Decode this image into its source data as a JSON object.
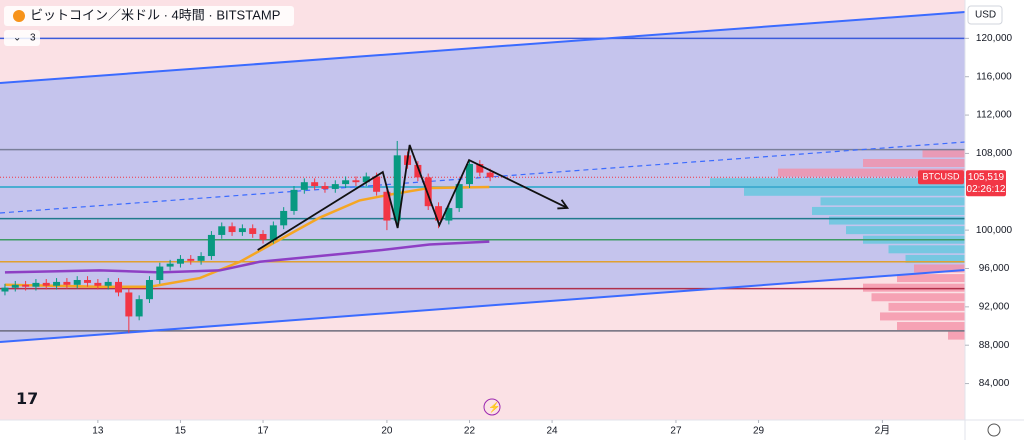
{
  "chart_data": {
    "type": "candlestick",
    "title": "ビットコイン／米ドル · 4時間 · BITSTAMP",
    "indicator_count": "3",
    "currency": "USD",
    "x": [
      10.75,
      11,
      11.25,
      11.5,
      11.75,
      12,
      12.25,
      12.5,
      12.75,
      13,
      13.25,
      13.5,
      13.75,
      14,
      14.25,
      14.5,
      14.75,
      15,
      15.25,
      15.5,
      15.75,
      16,
      16.25,
      16.5,
      16.75,
      17,
      17.25,
      17.5,
      17.75,
      18,
      18.25,
      18.5,
      18.75,
      19,
      19.25,
      19.5,
      19.75,
      20,
      20.25,
      20.5,
      20.75,
      21,
      21.25,
      21.5,
      21.75,
      22,
      22.25,
      22.5
    ],
    "open": [
      93600,
      94000,
      94300,
      94100,
      94500,
      94200,
      94600,
      94300,
      94800,
      94500,
      94200,
      94600,
      93500,
      91000,
      92800,
      94800,
      96200,
      96500,
      97000,
      96800,
      97300,
      99500,
      100400,
      99800,
      100200,
      99600,
      99000,
      100500,
      102000,
      104200,
      105000,
      104600,
      104300,
      104800,
      105200,
      105000,
      105600,
      104000,
      101000,
      107800,
      106800,
      105500,
      102500,
      101000,
      102300,
      104800,
      106900,
      106000
    ],
    "high": [
      94400,
      94700,
      94700,
      94900,
      94900,
      95000,
      95000,
      95200,
      95200,
      94900,
      95000,
      95000,
      93900,
      93200,
      95200,
      96600,
      96900,
      97400,
      97400,
      97700,
      99900,
      100800,
      100800,
      100600,
      100600,
      100000,
      100900,
      102400,
      104600,
      105400,
      105400,
      105000,
      105200,
      105600,
      105600,
      106000,
      106000,
      104400,
      109300,
      108200,
      107200,
      105900,
      102900,
      102700,
      105200,
      107300,
      107300,
      106400
    ],
    "low": [
      93200,
      93600,
      93700,
      93700,
      93800,
      93800,
      93900,
      93900,
      94100,
      93800,
      93800,
      93100,
      89300,
      90600,
      92400,
      94400,
      95800,
      96100,
      96400,
      96400,
      96900,
      99100,
      99400,
      99400,
      99200,
      98600,
      98600,
      100100,
      101600,
      103800,
      104200,
      103900,
      103900,
      104400,
      104600,
      104600,
      103600,
      100000,
      100600,
      106400,
      105100,
      102100,
      100200,
      100600,
      101900,
      104400,
      105600,
      105100
    ],
    "close": [
      94000,
      94300,
      94100,
      94500,
      94200,
      94600,
      94300,
      94800,
      94500,
      94200,
      94600,
      93500,
      91000,
      92800,
      94800,
      96200,
      96500,
      97000,
      96800,
      97300,
      99500,
      100400,
      99800,
      100200,
      99600,
      99000,
      100500,
      102000,
      104200,
      105000,
      104600,
      104300,
      104800,
      105200,
      105000,
      105600,
      104000,
      101000,
      107800,
      106800,
      105500,
      102500,
      101000,
      102300,
      104800,
      106900,
      106000,
      105519
    ],
    "up_color": "#089981",
    "down_color": "#f23645",
    "xlim": [
      10.63,
      34
    ],
    "xticks": [
      13,
      15,
      17,
      20,
      22,
      24,
      27,
      29,
      {
        "value": 32,
        "label": "2月"
      }
    ],
    "ylim": [
      80200,
      124000
    ],
    "yticks": [
      {
        "value": 84000,
        "label": "84,000"
      },
      {
        "value": 88000,
        "label": "88,000"
      },
      {
        "value": 92000,
        "label": "92,000"
      },
      {
        "value": 96000,
        "label": "96,000"
      },
      {
        "value": 100000,
        "label": "100,000"
      },
      {
        "value": 108000,
        "label": "108,000"
      },
      {
        "value": 112000,
        "label": "112,000"
      },
      {
        "value": 116000,
        "label": "116,000"
      },
      {
        "value": 120000,
        "label": "120,000"
      }
    ],
    "series": [
      {
        "color": "#f5a623",
        "x": [
          10.75,
          13.05,
          14.26,
          15.47,
          16.44,
          17.4,
          18.37,
          19.34,
          20.07,
          21.03,
          22.48
        ],
        "values": [
          94300,
          94100,
          94100,
          95000,
          96700,
          99000,
          101300,
          103100,
          103700,
          104400,
          104500
        ]
      },
      {
        "color": "#8e3fc4",
        "x": [
          10.75,
          13.05,
          14.5,
          15.95,
          16.92,
          18.37,
          19.82,
          21.03,
          22.48
        ],
        "values": [
          95600,
          95800,
          95600,
          95800,
          96700,
          97300,
          97900,
          98500,
          98800
        ]
      }
    ],
    "levels": [
      {
        "value": 120000,
        "color": "#3b5bdb"
      },
      {
        "value": 108400,
        "color": "#7a7f99"
      },
      {
        "value": 104500,
        "color": "#22a5c9"
      },
      {
        "value": 101200,
        "color": "#1f7a8c"
      },
      {
        "value": 99000,
        "color": "#3e9b64"
      },
      {
        "value": 96700,
        "color": "#e0a030"
      },
      {
        "value": 93900,
        "color": "#b0304a"
      },
      {
        "value": 89500,
        "color": "#6b6b7b"
      }
    ],
    "trend_lines": [
      {
        "color": "#3b6bff",
        "dashed": false,
        "x": [
          10.63,
          34
        ],
        "values": [
          115344,
          122750
        ]
      },
      {
        "color": "#3b6bff",
        "dashed": false,
        "x": [
          10.63,
          34
        ],
        "values": [
          88330,
          95840
        ]
      },
      {
        "color": "#3b6bff",
        "dashed": true,
        "x": [
          10.63,
          34
        ],
        "values": [
          101790,
          109190
        ]
      }
    ],
    "drawing": {
      "color": "#111111",
      "x": [
        16.87,
        19.9,
        20.26,
        20.55,
        20.91,
        21.27,
        21.99,
        24.37
      ],
      "values": [
        97930,
        106060,
        100220,
        108880,
        104710,
        100530,
        107310,
        102310
      ]
    },
    "volume_profile": {
      "prices": [
        89000,
        90000,
        91000,
        92000,
        93000,
        94000,
        95000,
        96000,
        97000,
        98000,
        99000,
        100000,
        101000,
        102000,
        103000,
        104000,
        105000,
        106000,
        107000,
        108000
      ],
      "volumes": [
        10,
        40,
        50,
        45,
        55,
        60,
        40,
        30,
        35,
        45,
        60,
        70,
        80,
        90,
        85,
        130,
        150,
        110,
        60,
        25
      ],
      "colors": [
        "#f48ca3",
        "#f48ca3",
        "#f48ca3",
        "#f48ca3",
        "#f48ca3",
        "#f48ca3",
        "#f48ca3",
        "#f48ca3",
        "#5bc8dc",
        "#5bc8dc",
        "#5bc8dc",
        "#5bc8dc",
        "#5bc8dc",
        "#5bc8dc",
        "#5bc8dc",
        "#5bc8dc",
        "#5bc8dc",
        "#f48ca3",
        "#f48ca3",
        "#f48ca3"
      ]
    },
    "last_price": {
      "value": 105519,
      "label": "105,519",
      "symbol": "BTCUSD",
      "countdown": "02:26:12",
      "color": "#f23645"
    }
  }
}
